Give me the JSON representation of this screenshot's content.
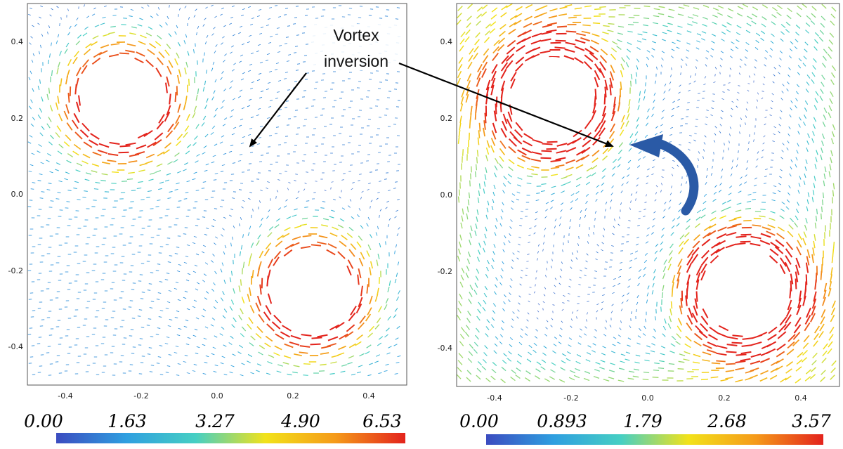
{
  "annotation": {
    "line1": "Vortex",
    "line2": "inversion"
  },
  "panels": [
    {
      "x_ticks": [
        "-0.4",
        "-0.2",
        "0.0",
        "0.2",
        "0.4"
      ],
      "y_ticks": [
        "0.4",
        "0.2",
        "0.0",
        "-0.2",
        "-0.4"
      ],
      "colorbar": {
        "labels": [
          "0.00",
          "1.63",
          "3.27",
          "4.90",
          "6.53"
        ],
        "min": 0,
        "max": 6.53
      },
      "central_vortex": "weak"
    },
    {
      "x_ticks": [
        "-0.4",
        "-0.2",
        "0.0",
        "0.2",
        "0.4"
      ],
      "y_ticks": [
        "0.4",
        "0.2",
        "0.0",
        "-0.2",
        "-0.4"
      ],
      "colorbar": {
        "labels": [
          "0.00",
          "0.893",
          "1.79",
          "2.68",
          "3.57"
        ],
        "min": 0,
        "max": 3.57
      },
      "central_vortex": "strong"
    }
  ],
  "domain": {
    "x": [
      -0.5,
      0.5
    ],
    "y": [
      -0.5,
      0.5
    ]
  },
  "cylinders": [
    {
      "cx": -0.25,
      "cy": 0.25,
      "r": 0.11
    },
    {
      "cx": 0.25,
      "cy": -0.25,
      "r": 0.11
    }
  ],
  "colormap": [
    "#3b4cc0",
    "#2f9fe0",
    "#46cfc3",
    "#f2e21a",
    "#f59a1a",
    "#e3231c"
  ],
  "colors": {
    "rotation_arrow": "#2a5aa6",
    "frame": "#555555",
    "leader": "#000000"
  }
}
